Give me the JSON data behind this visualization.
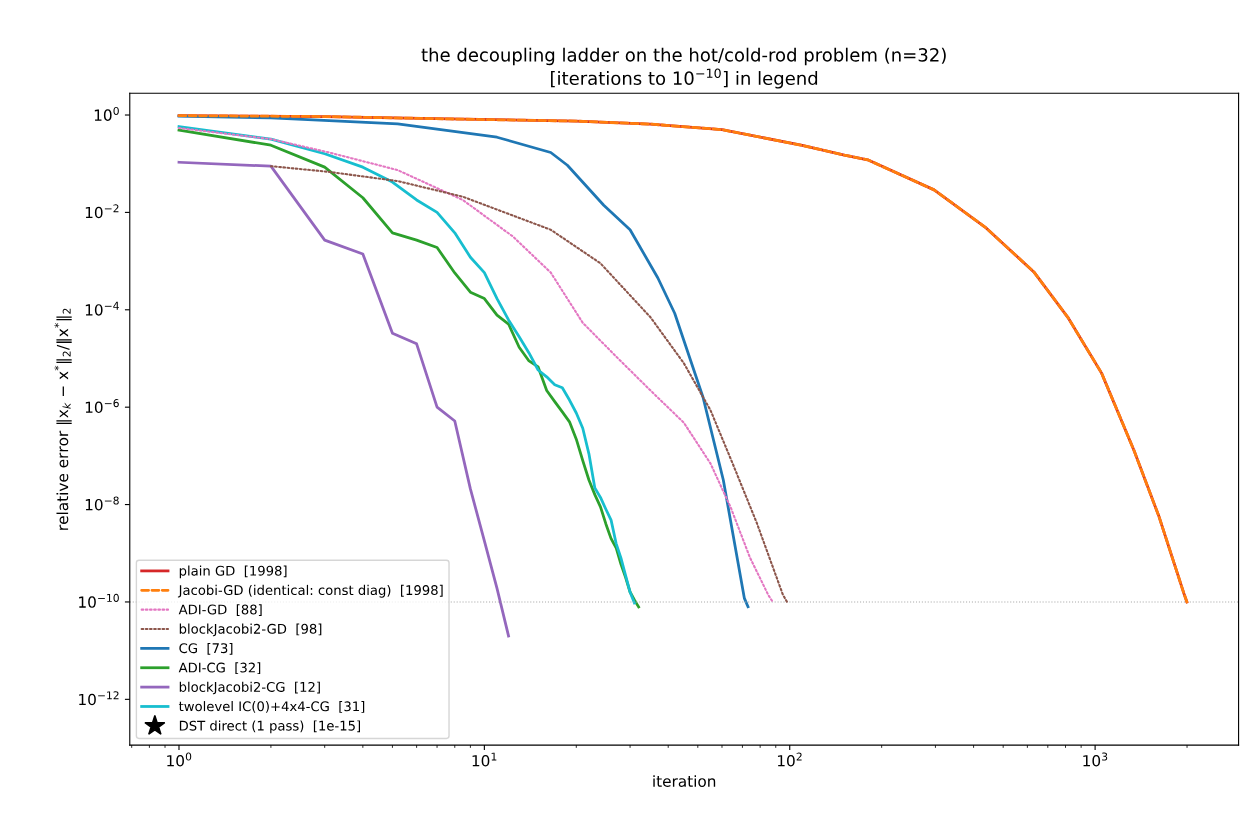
{
  "chart_data": {
    "type": "line",
    "title": "the decoupling ladder on the hot/cold-rod problem (n=32)\n[iterations to 10$^{−10}$] in legend",
    "xlabel": "iteration",
    "ylabel": "relative error ‖x$_{k}$ − x$^{*}$‖$_{2}$/‖x$^{*}$‖$_{2}$",
    "log": "xy",
    "grid": false,
    "legend": "bottom left",
    "xlim": [
      0.69,
      2950
    ],
    "ylim": [
      1.15e-13,
      2.8
    ],
    "xticks": [
      {
        "value": 1,
        "label": "10$^{0}$"
      },
      {
        "value": 10,
        "label": "10$^{1}$"
      },
      {
        "value": 100,
        "label": "10$^{2}$"
      },
      {
        "value": 1000,
        "label": "10$^{3}$"
      }
    ],
    "yticks": [
      {
        "value": 1e-12,
        "label": "10$^{−12}$"
      },
      {
        "value": 1e-10,
        "label": "10$^{−10}$"
      },
      {
        "value": 1e-08,
        "label": "10$^{−8}$"
      },
      {
        "value": 1e-06,
        "label": "10$^{−6}$"
      },
      {
        "value": 0.0001,
        "label": "10$^{−4}$"
      },
      {
        "value": 0.01,
        "label": "10$^{−2}$"
      },
      {
        "value": 1,
        "label": "10$^{0}$"
      }
    ],
    "ref_lines": [
      {
        "axis": "y",
        "value": 1e-10,
        "color": "#aaaaaa",
        "line_style": "dotted"
      }
    ],
    "series": [
      {
        "name": "plain GD  [1998]",
        "color": "#d62728",
        "line_style": "solid",
        "x": [
          1,
          3,
          7.7,
          20,
          35,
          60,
          109,
          151,
          180,
          297,
          436,
          630,
          814,
          1050,
          1340,
          1620,
          1960,
          1998
        ],
        "values": [
          0.97,
          0.93,
          0.83,
          0.75,
          0.65,
          0.5,
          0.24,
          0.15,
          0.12,
          0.029,
          0.005,
          0.0006,
          7e-05,
          5e-06,
          1.3e-07,
          5.6e-09,
          1.4e-10,
          1e-10
        ]
      },
      {
        "name": "Jacobi-GD (identical: const diag)  [1998]",
        "color": "#ff7f0e",
        "line_style": "dashed",
        "x": [
          1,
          3,
          7.7,
          20,
          35,
          60,
          109,
          151,
          180,
          297,
          436,
          630,
          814,
          1050,
          1340,
          1620,
          1960,
          1998
        ],
        "values": [
          0.97,
          0.93,
          0.83,
          0.75,
          0.65,
          0.5,
          0.24,
          0.15,
          0.12,
          0.029,
          0.005,
          0.0006,
          7e-05,
          5e-06,
          1.3e-07,
          5.6e-09,
          1.4e-10,
          1e-10
        ]
      },
      {
        "name": "ADI-GD  [88]",
        "color": "#e377c2",
        "line_style": "dotted",
        "x": [
          1,
          2,
          3.1,
          5.2,
          8.5,
          12.4,
          16.5,
          21,
          27,
          35,
          45,
          55,
          64,
          74,
          85,
          88
        ],
        "values": [
          0.54,
          0.32,
          0.17,
          0.074,
          0.018,
          0.0032,
          0.00058,
          5.4e-05,
          1.1e-05,
          2.2e-06,
          4.8e-07,
          7e-08,
          8.9e-09,
          8.3e-10,
          1.4e-10,
          1e-10
        ]
      },
      {
        "name": "blockJacobi2-GD  [98]",
        "color": "#8c564b",
        "line_style": "dotted",
        "x": [
          2,
          3.1,
          5.2,
          8.5,
          12.8,
          16.5,
          24,
          35,
          45,
          55,
          65,
          78,
          95,
          98
        ],
        "values": [
          0.089,
          0.068,
          0.044,
          0.021,
          0.008,
          0.0044,
          0.0009,
          7e-05,
          8e-06,
          8.7e-07,
          7e-08,
          4.2e-09,
          1.4e-10,
          1e-10
        ]
      },
      {
        "name": "CG  [73]",
        "color": "#1f77b4",
        "line_style": "solid",
        "x": [
          1,
          2,
          5.2,
          11,
          16.5,
          18.7,
          24.6,
          30,
          37,
          42,
          52,
          60.6,
          71,
          73
        ],
        "values": [
          0.95,
          0.87,
          0.66,
          0.35,
          0.17,
          0.093,
          0.014,
          0.0044,
          0.00045,
          8.5e-05,
          1.6e-06,
          3.2e-08,
          1.2e-10,
          8e-11
        ]
      },
      {
        "name": "ADI-CG  [32]",
        "color": "#2ca02c",
        "line_style": "solid",
        "x": [
          1,
          2,
          3,
          4,
          5,
          6,
          7,
          8,
          9,
          10,
          11,
          12,
          13,
          14,
          15,
          16,
          17,
          18,
          19,
          20,
          21,
          22,
          23,
          24,
          25,
          26,
          27,
          28,
          29,
          30,
          31,
          32
        ],
        "values": [
          0.49,
          0.24,
          0.085,
          0.02,
          0.0038,
          0.0027,
          0.0019,
          0.00057,
          0.00023,
          0.00017,
          7.8e-05,
          5.1e-05,
          1.7e-05,
          8.9e-06,
          6.7e-06,
          2.2e-06,
          1.3e-06,
          8e-07,
          5e-07,
          2.2e-07,
          8e-08,
          3.2e-08,
          1.6e-08,
          9e-09,
          4e-09,
          2e-09,
          1.3e-09,
          6e-10,
          3.2e-10,
          1.6e-10,
          1.1e-10,
          7.9e-11
        ]
      },
      {
        "name": "blockJacobi2-CG  [12]",
        "color": "#9467bd",
        "line_style": "solid",
        "x": [
          1,
          2,
          3,
          4,
          5,
          6,
          7,
          8,
          9,
          10,
          11,
          12
        ],
        "values": [
          0.107,
          0.089,
          0.0027,
          0.0014,
          3.3e-05,
          2e-05,
          1e-06,
          5.2e-07,
          2.1e-08,
          1.8e-09,
          1.9e-10,
          2e-11
        ]
      },
      {
        "name": "twolevel IC(0)+4x4-CG  [31]",
        "color": "#17becf",
        "line_style": "solid",
        "x": [
          1,
          2,
          3,
          4,
          5,
          6,
          7,
          8,
          9,
          10,
          11,
          12,
          13,
          14,
          15,
          16,
          17,
          18,
          19,
          20,
          21,
          22,
          23,
          24,
          25,
          26,
          27,
          28,
          29,
          30,
          31
        ],
        "values": [
          0.58,
          0.32,
          0.16,
          0.085,
          0.042,
          0.018,
          0.01,
          0.0038,
          0.0012,
          0.00058,
          0.00017,
          6.2e-05,
          2.8e-05,
          1.3e-05,
          5.8e-06,
          4.2e-06,
          2.9e-06,
          2.5e-06,
          1.4e-06,
          7.6e-07,
          3.7e-07,
          1.1e-07,
          2.2e-08,
          1.4e-08,
          8e-09,
          4.8e-09,
          1.6e-09,
          8e-10,
          3.5e-10,
          1.6e-10,
          9.5e-11
        ]
      },
      {
        "name": "DST direct (1 pass)  [1e-15]",
        "color": "#000000",
        "type": "scatter",
        "marker": "star"
      }
    ]
  }
}
